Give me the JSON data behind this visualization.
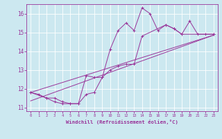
{
  "xlabel": "Windchill (Refroidissement éolien,°C)",
  "background_color": "#cce8f0",
  "line_color": "#993399",
  "grid_color": "#ffffff",
  "ylim": [
    10.8,
    16.5
  ],
  "xlim": [
    -0.5,
    23.5
  ],
  "yticks": [
    11,
    12,
    13,
    14,
    15,
    16
  ],
  "xticks": [
    0,
    1,
    2,
    3,
    4,
    5,
    6,
    7,
    8,
    9,
    10,
    11,
    12,
    13,
    14,
    15,
    16,
    17,
    18,
    19,
    20,
    21,
    22,
    23
  ],
  "lines": [
    {
      "x": [
        0,
        1,
        2,
        3,
        4,
        5,
        6,
        7,
        8,
        9,
        10,
        11,
        12,
        13,
        14,
        15,
        16,
        17,
        18,
        19,
        20,
        21,
        22,
        23
      ],
      "y": [
        11.8,
        11.7,
        11.5,
        11.3,
        11.2,
        11.2,
        11.2,
        11.7,
        11.8,
        12.6,
        14.1,
        15.1,
        15.5,
        15.1,
        16.3,
        16.0,
        15.1,
        15.4,
        15.2,
        14.9,
        15.6,
        14.9,
        14.9,
        14.9
      ],
      "marker": true
    },
    {
      "x": [
        0,
        2,
        3,
        4,
        5,
        6,
        7,
        8,
        9,
        10,
        11,
        12,
        13,
        14,
        17,
        18,
        19,
        23
      ],
      "y": [
        11.8,
        11.5,
        11.5,
        11.3,
        11.2,
        11.2,
        12.7,
        12.6,
        12.6,
        13.0,
        13.2,
        13.3,
        13.3,
        14.8,
        15.4,
        15.2,
        14.9,
        14.9
      ],
      "marker": true
    },
    {
      "x": [
        0,
        23
      ],
      "y": [
        11.8,
        14.85
      ],
      "marker": false
    },
    {
      "x": [
        0,
        23
      ],
      "y": [
        11.35,
        14.85
      ],
      "marker": false
    }
  ]
}
